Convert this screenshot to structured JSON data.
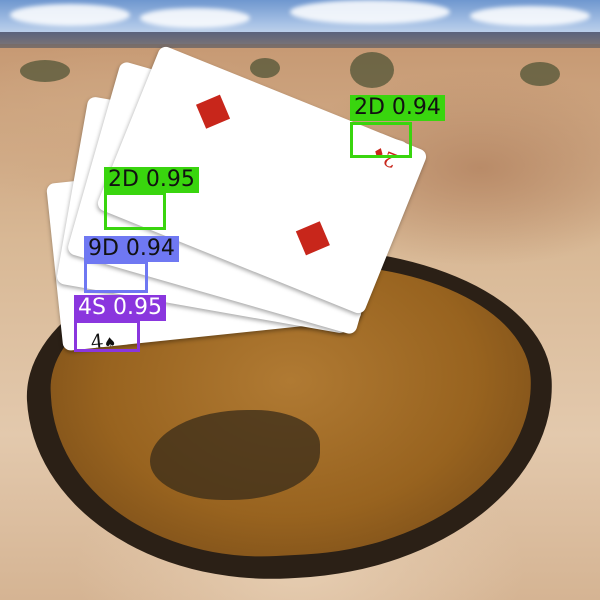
{
  "image": {
    "cards": [
      {
        "rank": "4",
        "suit": "♠",
        "color": "#111111"
      },
      {
        "rank": "9",
        "suit": "♦",
        "color": "#c8261b"
      },
      {
        "rank": "2",
        "suit": "♦",
        "color": "#c8261b"
      },
      {
        "rank": "2",
        "suit": "♦",
        "color": "#c8261b"
      }
    ],
    "detections": [
      {
        "label": "2D 0.94",
        "color": "#39d50e"
      },
      {
        "label": "2D 0.95",
        "color": "#39d50e"
      },
      {
        "label": "9D 0.94",
        "color": "#6f78f2"
      },
      {
        "label": "4S 0.95",
        "color": "#8a36de"
      }
    ]
  }
}
